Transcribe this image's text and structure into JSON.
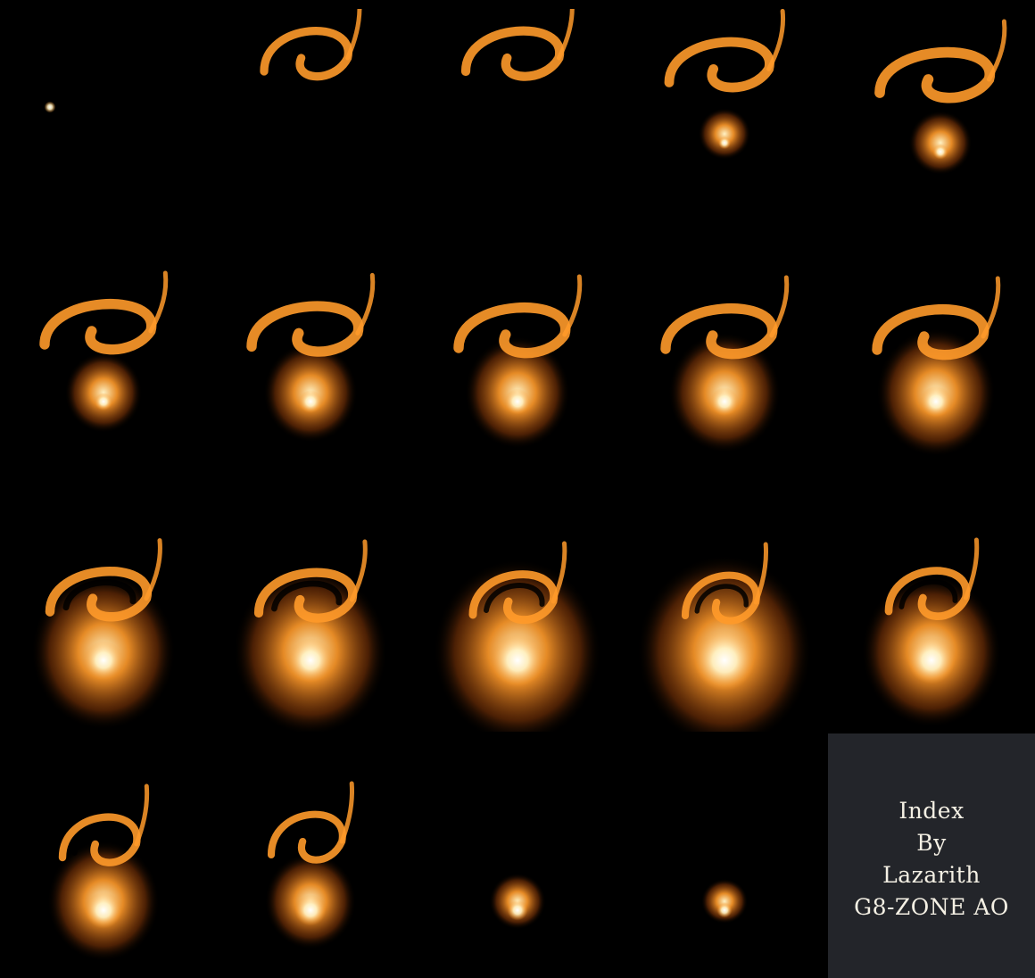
{
  "sheet": {
    "background": "#000000",
    "flame_color": "#ff9a2a",
    "core_color": "#fff2c4",
    "frame_count": 19
  },
  "frames": [
    {
      "index": 1,
      "stage": "spark",
      "glow": 0.0,
      "swirl": 0.0,
      "spark": 0.08
    },
    {
      "index": 2,
      "stage": "swirl",
      "glow": 0.0,
      "swirl": 0.55,
      "spark": 0.0
    },
    {
      "index": 3,
      "stage": "swirl",
      "glow": 0.0,
      "swirl": 0.7,
      "spark": 0.0
    },
    {
      "index": 4,
      "stage": "swirl",
      "glow": 0.12,
      "swirl": 0.8,
      "spark": 0.1
    },
    {
      "index": 5,
      "stage": "swirl",
      "glow": 0.2,
      "swirl": 0.95,
      "spark": 0.15
    },
    {
      "index": 6,
      "stage": "build",
      "glow": 0.3,
      "swirl": 0.9,
      "spark": 0.2
    },
    {
      "index": 7,
      "stage": "build",
      "glow": 0.42,
      "swirl": 0.9,
      "spark": 0.3
    },
    {
      "index": 8,
      "stage": "build",
      "glow": 0.5,
      "swirl": 0.9,
      "spark": 0.35
    },
    {
      "index": 9,
      "stage": "build",
      "glow": 0.55,
      "swirl": 0.9,
      "spark": 0.4
    },
    {
      "index": 10,
      "stage": "build",
      "glow": 0.6,
      "swirl": 0.9,
      "spark": 0.45
    },
    {
      "index": 11,
      "stage": "burst",
      "glow": 0.78,
      "swirl": 0.75,
      "spark": 0.6
    },
    {
      "index": 12,
      "stage": "burst",
      "glow": 0.85,
      "swirl": 0.7,
      "spark": 0.7
    },
    {
      "index": 13,
      "stage": "burst",
      "glow": 0.95,
      "swirl": 0.5,
      "spark": 0.85
    },
    {
      "index": 14,
      "stage": "burst",
      "glow": 1.0,
      "swirl": 0.35,
      "spark": 1.0
    },
    {
      "index": 15,
      "stage": "burst",
      "glow": 0.75,
      "swirl": 0.45,
      "spark": 0.75
    },
    {
      "index": 16,
      "stage": "fade",
      "glow": 0.55,
      "swirl": 0.4,
      "spark": 0.55
    },
    {
      "index": 17,
      "stage": "fade",
      "glow": 0.4,
      "swirl": 0.35,
      "spark": 0.45
    },
    {
      "index": 18,
      "stage": "fade",
      "glow": 0.15,
      "swirl": 0.0,
      "spark": 0.25
    },
    {
      "index": 19,
      "stage": "fade",
      "glow": 0.08,
      "swirl": 0.0,
      "spark": 0.15
    }
  ],
  "credit": {
    "line1": "Index",
    "line2": "By",
    "line3": "Lazarith",
    "line4": "G8-ZONE AO",
    "panel_color": "#23252a",
    "text_color": "#f4f0e4"
  }
}
